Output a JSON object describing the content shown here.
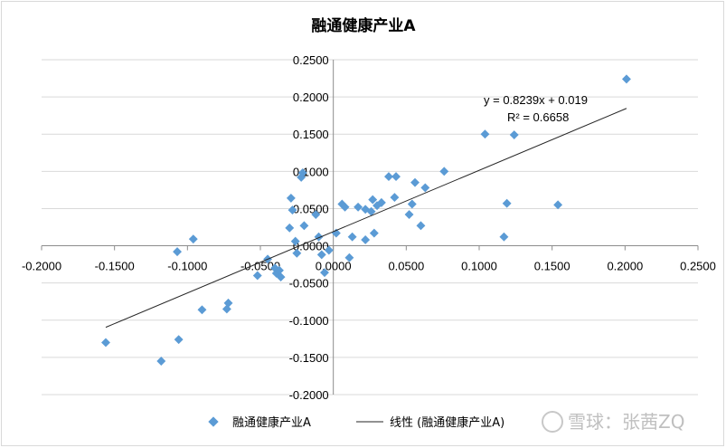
{
  "chart_data": {
    "type": "scatter",
    "title": "融通健康产业A",
    "xlabel": "",
    "ylabel": "",
    "xlim": [
      -0.2,
      0.25
    ],
    "ylim": [
      -0.2,
      0.25
    ],
    "x_ticks": [
      "-0.2000",
      "-0.1500",
      "-0.1000",
      "-0.0500",
      "0.0000",
      "0.0500",
      "0.1000",
      "0.1500",
      "0.2000",
      "0.2500"
    ],
    "y_ticks": [
      "0.2500",
      "0.2000",
      "0.1500",
      "0.1000",
      "0.0500",
      "0.0000",
      "-0.0500",
      "-0.1000",
      "-0.1500",
      "-0.2000"
    ],
    "grid": true,
    "legend_position": "bottom",
    "series": [
      {
        "name": "融通健康产业A",
        "color": "#5b9bd5",
        "marker": "diamond",
        "points": [
          [
            -0.156,
            -0.13
          ],
          [
            -0.118,
            -0.155
          ],
          [
            -0.106,
            -0.126
          ],
          [
            -0.107,
            -0.008
          ],
          [
            -0.096,
            0.009
          ],
          [
            -0.09,
            -0.086
          ],
          [
            -0.073,
            -0.085
          ],
          [
            -0.072,
            -0.077
          ],
          [
            -0.052,
            -0.04
          ],
          [
            -0.045,
            -0.018
          ],
          [
            -0.04,
            -0.03
          ],
          [
            -0.039,
            -0.037
          ],
          [
            -0.037,
            -0.033
          ],
          [
            -0.036,
            -0.042
          ],
          [
            -0.03,
            0.024
          ],
          [
            -0.029,
            0.064
          ],
          [
            -0.028,
            0.048
          ],
          [
            -0.026,
            0.006
          ],
          [
            -0.025,
            -0.01
          ],
          [
            -0.022,
            0.092
          ],
          [
            -0.021,
            0.098
          ],
          [
            -0.02,
            0.027
          ],
          [
            -0.012,
            0.042
          ],
          [
            -0.01,
            0.012
          ],
          [
            -0.008,
            -0.012
          ],
          [
            -0.006,
            -0.036
          ],
          [
            -0.003,
            -0.006
          ],
          [
            0.002,
            0.017
          ],
          [
            0.006,
            0.056
          ],
          [
            0.008,
            0.052
          ],
          [
            0.011,
            -0.016
          ],
          [
            0.013,
            0.012
          ],
          [
            0.017,
            0.052
          ],
          [
            0.022,
            0.049
          ],
          [
            0.022,
            0.008
          ],
          [
            0.026,
            0.046
          ],
          [
            0.027,
            0.062
          ],
          [
            0.028,
            0.017
          ],
          [
            0.03,
            0.054
          ],
          [
            0.033,
            0.058
          ],
          [
            0.038,
            0.093
          ],
          [
            0.042,
            0.065
          ],
          [
            0.043,
            0.093
          ],
          [
            0.052,
            0.042
          ],
          [
            0.054,
            0.056
          ],
          [
            0.056,
            0.085
          ],
          [
            0.06,
            0.027
          ],
          [
            0.063,
            0.078
          ],
          [
            0.076,
            0.1
          ],
          [
            0.104,
            0.15
          ],
          [
            0.117,
            0.012
          ],
          [
            0.119,
            0.057
          ],
          [
            0.124,
            0.149
          ],
          [
            0.154,
            0.055
          ],
          [
            0.201,
            0.224
          ]
        ]
      },
      {
        "name": "线性 (融通健康产业A)",
        "color": "#262626",
        "type": "line",
        "slope": 0.8239,
        "intercept": 0.019,
        "x_range": [
          -0.156,
          0.201
        ]
      }
    ],
    "trendline_label": {
      "equation": "y = 0.8239x + 0.019",
      "r_squared": "R² = 0.6658"
    }
  },
  "legend": {
    "scatter_label": "融通健康产业A",
    "line_label": "线性 (融通健康产业A)"
  },
  "watermark": "雪球：张茜ZQ"
}
